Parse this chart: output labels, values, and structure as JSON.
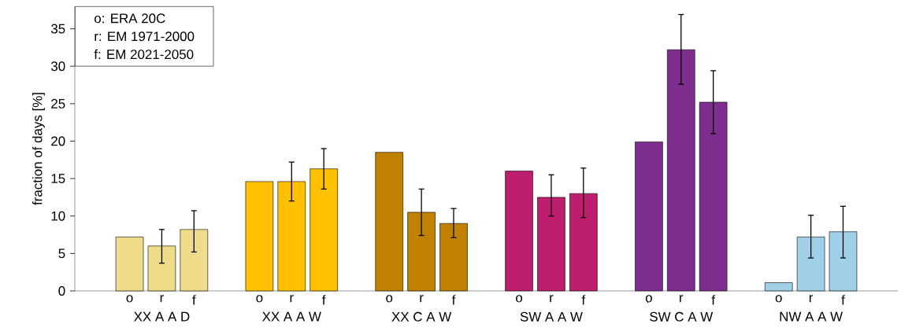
{
  "chart_data": {
    "type": "bar",
    "ylabel": "fraction of days [%]",
    "categories": [
      "XX A A D",
      "XX A A W",
      "XX C A W",
      "SW A A W",
      "SW C A W",
      "NW A A W"
    ],
    "series": [
      {
        "name": "o",
        "colors": [
          "#eedc8a",
          "#ffc000",
          "#c08000",
          "#be1e6e",
          "#7e2e8e",
          "#9fd0e8"
        ],
        "values": [
          7.2,
          14.6,
          18.5,
          16.0,
          19.9,
          1.1
        ]
      },
      {
        "name": "r",
        "colors": [
          "#eedc8a",
          "#ffc000",
          "#c08000",
          "#be1e6e",
          "#7e2e8e",
          "#9fd0e8"
        ],
        "values": [
          6.0,
          14.6,
          10.5,
          12.5,
          32.2,
          7.2
        ],
        "errors": [
          [
            3.7,
            8.2
          ],
          [
            12.0,
            17.2
          ],
          [
            7.4,
            13.6
          ],
          [
            10.0,
            15.5
          ],
          [
            27.6,
            36.9
          ],
          [
            4.4,
            10.1
          ]
        ]
      },
      {
        "name": "f",
        "colors": [
          "#eedc8a",
          "#ffc000",
          "#c08000",
          "#be1e6e",
          "#7e2e8e",
          "#9fd0e8"
        ],
        "values": [
          8.2,
          16.3,
          9.0,
          13.0,
          25.2,
          7.9
        ],
        "errors": [
          [
            5.2,
            10.7
          ],
          [
            13.6,
            19.0
          ],
          [
            7.1,
            11.0
          ],
          [
            9.8,
            16.4
          ],
          [
            21.0,
            29.4
          ],
          [
            4.4,
            11.3
          ]
        ]
      }
    ],
    "ylim": [
      0,
      38
    ],
    "yticks": [
      0,
      5,
      10,
      15,
      20,
      25,
      30,
      35
    ],
    "annotations": [
      "o: ERA 20C",
      "r: EM 1971-2000",
      "f: EM 2021-2050"
    ],
    "grid": false
  }
}
